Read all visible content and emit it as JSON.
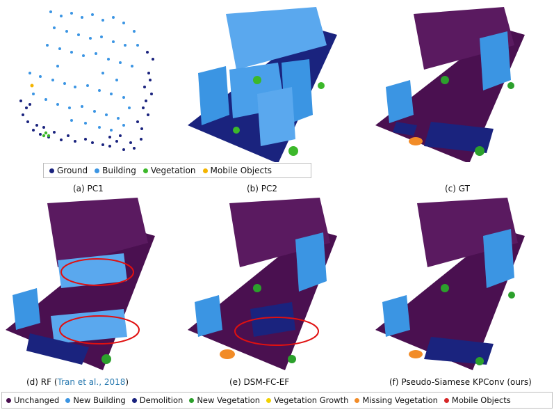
{
  "top_legend": [
    {
      "label": "Ground",
      "color": "#1a237e"
    },
    {
      "label": "Building",
      "color": "#3b95e3"
    },
    {
      "label": "Vegetation",
      "color": "#3cb82a"
    },
    {
      "label": "Mobile Objects",
      "color": "#f4b400"
    }
  ],
  "bottom_legend": [
    {
      "label": "Unchanged",
      "color": "#4a1050"
    },
    {
      "label": "New Building",
      "color": "#3b95e3"
    },
    {
      "label": "Demolition",
      "color": "#1a237e"
    },
    {
      "label": "New Vegetation",
      "color": "#2ca02c"
    },
    {
      "label": "Vegetation Growth",
      "color": "#f2d200"
    },
    {
      "label": "Missing Vegetation",
      "color": "#f28c28"
    },
    {
      "label": "Mobile Objects",
      "color": "#d62728"
    }
  ],
  "captions": {
    "a": "(a) PC1",
    "b": "(b) PC2",
    "c": "(c) GT",
    "d_pre": "(d) RF (",
    "d_cite": "Tran et al., 2018",
    "d_post": ")",
    "e": "(e) DSM-FC-EF",
    "f": "(f) Pseudo-Siamese KPConv (ours)"
  },
  "colors": {
    "ground": "#1a237e",
    "building": "#3b95e3",
    "unchanged": "#4a1050",
    "vegetation": "#3cb82a",
    "mobile": "#f4b400",
    "missing_veg": "#f28c28",
    "highlight": "#e01010"
  }
}
